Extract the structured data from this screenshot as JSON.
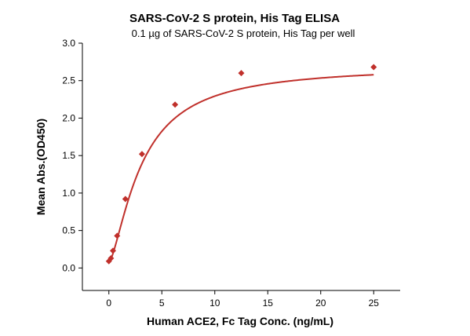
{
  "chart_data": {
    "type": "scatter",
    "title": "SARS-CoV-2 S protein, His Tag ELISA",
    "subtitle": "0.1 µg of SARS-CoV-2 S protein, His Tag per well",
    "xlabel": "Human ACE2, Fc Tag Conc. (ng/mL)",
    "ylabel": "Mean Abs.(OD450)",
    "xlim": [
      -2.5,
      27.5
    ],
    "ylim": [
      -0.3,
      3.0
    ],
    "x_ticks": [
      "0",
      "5",
      "10",
      "15",
      "20",
      "25"
    ],
    "y_ticks": [
      "0.0",
      "0.5",
      "1.0",
      "1.5",
      "2.0",
      "2.5",
      "3.0"
    ],
    "grid": false,
    "legend": "none",
    "marker": "diamond",
    "series": [
      {
        "points": [
          {
            "x": 0.0,
            "y": 0.09
          },
          {
            "x": 0.195,
            "y": 0.13
          },
          {
            "x": 0.39,
            "y": 0.23
          },
          {
            "x": 0.78,
            "y": 0.43
          },
          {
            "x": 1.56,
            "y": 0.92
          },
          {
            "x": 3.125,
            "y": 1.52
          },
          {
            "x": 6.25,
            "y": 2.18
          },
          {
            "x": 12.5,
            "y": 2.6
          },
          {
            "x": 25.0,
            "y": 2.68
          }
        ],
        "fit": {
          "model": "4-parameter logistic",
          "bottom": 0.07,
          "top": 2.7,
          "ec50": 3.1,
          "hill": 1.45
        }
      }
    ],
    "colors": {
      "series": "#c0302b",
      "axis": "#000000",
      "text": "#000000"
    }
  }
}
